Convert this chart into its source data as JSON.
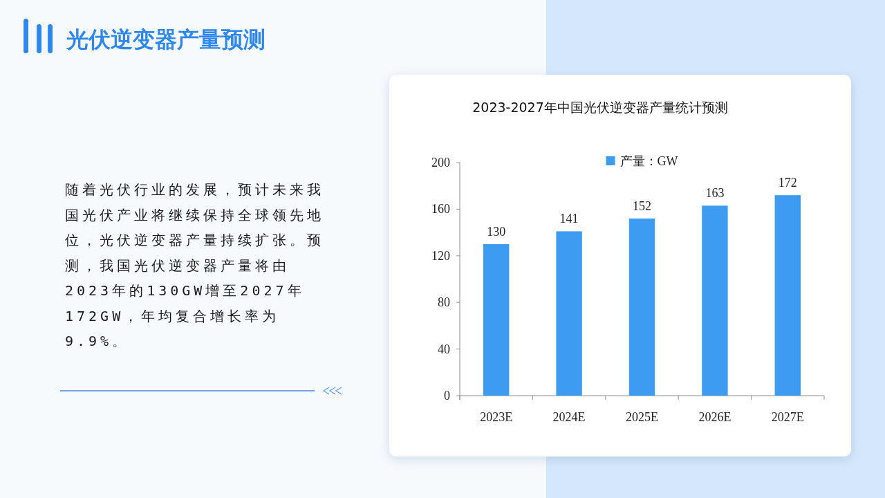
{
  "chart_data": {
    "type": "bar",
    "title": "2023-2027年中国光伏逆变器产量统计预测",
    "annotations": [
      "光伏逆变器产量预测",
      "随着光伏行业的发展，预计未来我国光伏产业将继续保持全球领先地位，光伏逆变器产量持续扩张。预测，我国光伏逆变器产量将由2023年的130GW增至2027年172GW，年均复合增长率为9.9%。"
    ],
    "categories": [
      "2023E",
      "2024E",
      "2025E",
      "2026E",
      "2027E"
    ],
    "series": [
      {
        "name": "产量：GW",
        "color": "#3d9cf0",
        "values": [
          130,
          141,
          152,
          163,
          172
        ]
      }
    ],
    "ylim": [
      0,
      200
    ],
    "yticks": [
      0,
      40,
      80,
      120,
      160,
      200
    ],
    "data_labels": true,
    "legend": "top",
    "grid": false
  }
}
